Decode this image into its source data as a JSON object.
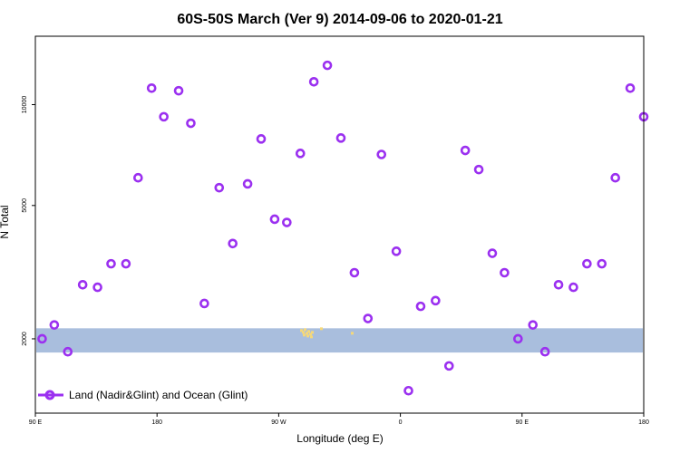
{
  "chart_data": {
    "type": "scatter",
    "title": "60S-50S March (Ver 9)   2014-09-06 to 2020-01-21",
    "xlabel": "Longitude (deg E)",
    "ylabel": "N Total",
    "x_ticks": [
      {
        "value": 90,
        "label": "90 E"
      },
      {
        "value": 180,
        "label": "180"
      },
      {
        "value": 270,
        "label": "90 W"
      },
      {
        "value": 360,
        "label": "0"
      },
      {
        "value": 450,
        "label": "90 E"
      },
      {
        "value": 540,
        "label": "180"
      }
    ],
    "y_ticks": [
      {
        "value": 2000,
        "label": "2000"
      },
      {
        "value": 5000,
        "label": "5000"
      },
      {
        "value": 10000,
        "label": "10000"
      }
    ],
    "xlim": [
      90,
      540
    ],
    "ylim": [
      1200,
      16000
    ],
    "y_scale": "log",
    "grid": false,
    "legend_position": "bottom-left",
    "colors": {
      "series": "#9b30f0",
      "band": "#a9bedd",
      "land": "#f5d87a"
    },
    "band": {
      "y_from": 1820,
      "y_to": 2150
    },
    "series": [
      {
        "name": "Land (Nadir&Glint) and Ocean (Glint)",
        "x": [
          95,
          104,
          114,
          125,
          136,
          146,
          157,
          166,
          176,
          185,
          196,
          205,
          215,
          226,
          236,
          247,
          257,
          267,
          276,
          286,
          296,
          306,
          316,
          326,
          336,
          346,
          357,
          366,
          375,
          386,
          396,
          408,
          418,
          428,
          437,
          447,
          458,
          467,
          477,
          488,
          498,
          509,
          519,
          530,
          540
        ],
        "y": [
          2000,
          2200,
          1830,
          2900,
          2850,
          3350,
          3350,
          6050,
          11200,
          9200,
          11000,
          8800,
          2550,
          5650,
          3850,
          5800,
          7900,
          4550,
          4450,
          7150,
          11700,
          13100,
          7950,
          3150,
          2300,
          7100,
          3650,
          1400,
          2500,
          2600,
          1660,
          7300,
          6400,
          3600,
          3150,
          2000,
          2200,
          1830,
          2900,
          2850,
          3350,
          3350,
          6050,
          11200,
          9200
        ]
      }
    ]
  }
}
